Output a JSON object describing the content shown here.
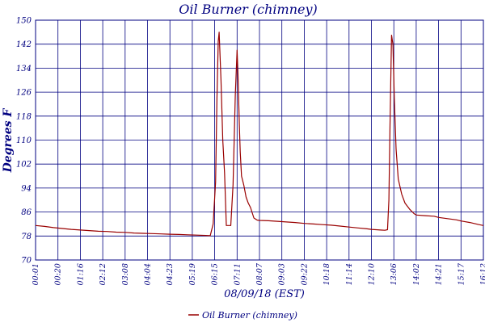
{
  "chart_data": {
    "type": "line",
    "title": "Oil Burner (chimney)",
    "xlabel": "08/09/18 (EST)",
    "ylabel": "Degrees F",
    "ylim": [
      70,
      150
    ],
    "yticks": [
      70,
      78,
      86,
      94,
      102,
      110,
      118,
      126,
      134,
      142,
      150
    ],
    "x_tick_labels": [
      "00:01",
      "00:20",
      "01:16",
      "02:12",
      "03:08",
      "04:04",
      "04:23",
      "05:19",
      "06:15",
      "07:11",
      "08:07",
      "09:03",
      "09:22",
      "10:18",
      "11:14",
      "12:10",
      "13:06",
      "14:02",
      "14:21",
      "15:17",
      "16:12"
    ],
    "grid": true,
    "legend_position": "bottom-center",
    "colors": {
      "series": "#990000",
      "grid": "#000080",
      "text": "#000080"
    },
    "series": [
      {
        "name": "Oil Burner (chimney)",
        "x_index": [
          0,
          0.4,
          0.8,
          1.2,
          1.6,
          2,
          2.4,
          2.8,
          3.2,
          3.6,
          4,
          4.4,
          4.8,
          5.2,
          5.6,
          6,
          6.4,
          6.8,
          7.2,
          7.6,
          7.8,
          7.93,
          8.04,
          8.1,
          8.16,
          8.2,
          8.28,
          8.36,
          8.44,
          8.52,
          8.62,
          8.72,
          8.82,
          8.92,
          9,
          9.04,
          9.1,
          9.14,
          9.2,
          9.3,
          9.4,
          9.5,
          9.6,
          9.75,
          9.9,
          10,
          10.4,
          10.8,
          11.2,
          11.6,
          12,
          12.4,
          12.8,
          13.2,
          13.6,
          14,
          14.4,
          14.8,
          15,
          15.4,
          15.6,
          15.72,
          15.78,
          15.83,
          15.9,
          15.96,
          16.02,
          16.1,
          16.2,
          16.35,
          16.5,
          16.7,
          16.9,
          17,
          17.4,
          17.8,
          18,
          18.4,
          18.8,
          19,
          19.4,
          19.8,
          20
        ],
        "values": [
          81.5,
          81.2,
          80.8,
          80.5,
          80.2,
          80,
          79.8,
          79.6,
          79.5,
          79.3,
          79.2,
          79,
          78.9,
          78.8,
          78.7,
          78.6,
          78.5,
          78.4,
          78.3,
          78.2,
          78.1,
          82,
          96,
          124,
          143,
          146,
          130,
          110,
          99,
          81.5,
          81.5,
          81.5,
          95,
          125,
          140,
          132,
          115,
          106,
          98,
          95,
          91,
          89,
          87.5,
          84,
          83.3,
          83.2,
          83.1,
          82.9,
          82.7,
          82.5,
          82.2,
          82,
          81.8,
          81.6,
          81.3,
          81,
          80.7,
          80.4,
          80.2,
          80,
          79.9,
          80.1,
          90,
          115,
          145,
          142,
          124,
          107,
          97,
          92,
          89,
          87,
          85.5,
          85,
          84.8,
          84.6,
          84.2,
          83.8,
          83.4,
          83,
          82.5,
          81.8,
          81.5
        ]
      }
    ]
  }
}
